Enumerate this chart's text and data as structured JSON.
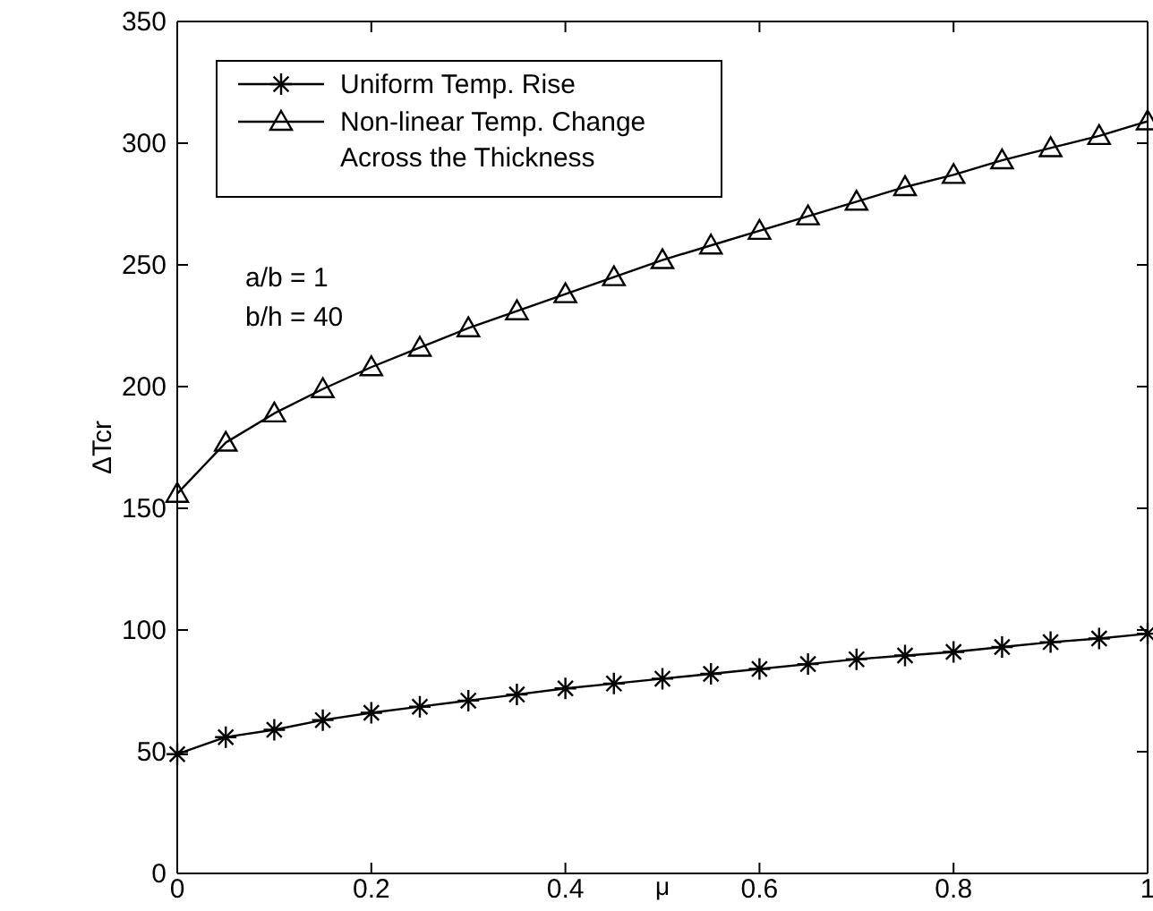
{
  "chart_data": {
    "type": "line",
    "xlabel": "μ",
    "ylabel": "ΔTcr",
    "x": [
      0,
      0.05,
      0.1,
      0.15,
      0.2,
      0.25,
      0.3,
      0.35,
      0.4,
      0.45,
      0.5,
      0.55,
      0.6,
      0.65,
      0.7,
      0.75,
      0.8,
      0.85,
      0.9,
      0.95,
      1
    ],
    "series": [
      {
        "name": "Uniform Temp. Rise",
        "color": "#000000",
        "marker": "cross",
        "values": [
          49,
          56,
          59,
          63,
          66,
          68.5,
          71,
          73.5,
          76,
          78,
          80,
          82,
          84,
          86,
          88,
          89.5,
          91,
          93,
          95,
          96.5,
          98.5
        ]
      },
      {
        "name": "Non-linear Temp. Change Across the Thickness",
        "color": "#000000",
        "marker": "triangle",
        "values": [
          156,
          177,
          189,
          199,
          208,
          216,
          224,
          231,
          238,
          245,
          252,
          258,
          264,
          270,
          276,
          282,
          287,
          293,
          298,
          303,
          309
        ]
      }
    ],
    "xlim": [
      0,
      1
    ],
    "xticks": [
      0,
      0.2,
      0.4,
      0.6,
      0.8,
      1
    ],
    "ylim": [
      0,
      350
    ],
    "yticks": [
      0,
      50,
      100,
      150,
      200,
      250,
      300,
      350
    ],
    "grid": false,
    "legend": "top left",
    "line_style": "solid",
    "annotations": [
      "a/b = 1",
      "b/h = 40"
    ]
  }
}
